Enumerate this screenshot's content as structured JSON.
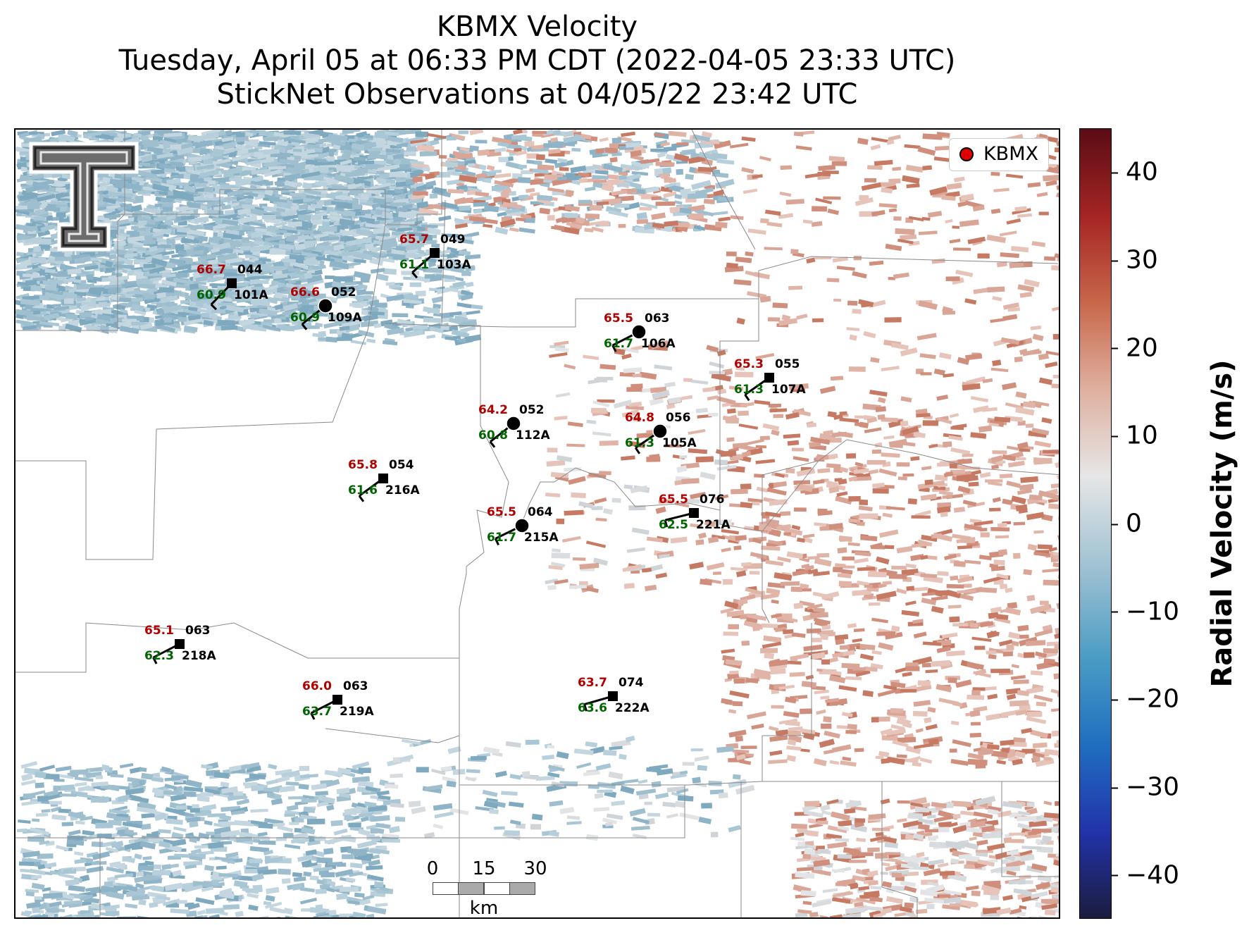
{
  "title": {
    "line1": "KBMX Velocity",
    "line2": "Tuesday, April 05 at 06:33 PM CDT (2022-04-05 23:33 UTC)",
    "line3": "StickNet Observations at 04/05/22 23:42 UTC"
  },
  "legend": {
    "label": "KBMX",
    "marker_color": "#e00000"
  },
  "scalebar": {
    "ticks": [
      "0",
      "15",
      "30"
    ],
    "unit": "km"
  },
  "colorbar": {
    "label": "Radial Velocity (m/s)",
    "ticks": [
      "40",
      "30",
      "20",
      "10",
      "0",
      "−10",
      "−20",
      "−30",
      "−40"
    ],
    "range": [
      -45,
      45
    ],
    "colors": [
      "#1c1c3e",
      "#2233aa",
      "#1f6fc0",
      "#4a9cc4",
      "#9cc0d2",
      "#e6e6e6",
      "#dfb0a0",
      "#c8674a",
      "#a52524",
      "#5a0c14"
    ]
  },
  "stations": [
    {
      "id": "101A",
      "temp": "66.7",
      "dew": "60.9",
      "dir": "044",
      "marker": "square"
    },
    {
      "id": "109A",
      "temp": "66.6",
      "dew": "60.9",
      "dir": "052",
      "marker": "circle"
    },
    {
      "id": "103A",
      "temp": "65.7",
      "dew": "61.1",
      "dir": "049",
      "marker": "square"
    },
    {
      "id": "106A",
      "temp": "65.5",
      "dew": "61.7",
      "dir": "063",
      "marker": "circle"
    },
    {
      "id": "107A",
      "temp": "65.3",
      "dew": "61.3",
      "dir": "055",
      "marker": "square"
    },
    {
      "id": "112A",
      "temp": "64.2",
      "dew": "60.8",
      "dir": "052",
      "marker": "circle"
    },
    {
      "id": "105A",
      "temp": "64.8",
      "dew": "61.3",
      "dir": "056",
      "marker": "circle"
    },
    {
      "id": "216A",
      "temp": "65.8",
      "dew": "61.6",
      "dir": "054",
      "marker": "square"
    },
    {
      "id": "215A",
      "temp": "65.5",
      "dew": "61.7",
      "dir": "064",
      "marker": "circle"
    },
    {
      "id": "221A",
      "temp": "65.5",
      "dew": "62.5",
      "dir": "076",
      "marker": "square"
    },
    {
      "id": "218A",
      "temp": "65.1",
      "dew": "62.3",
      "dir": "063",
      "marker": "square"
    },
    {
      "id": "219A",
      "temp": "66.0",
      "dew": "63.7",
      "dir": "063",
      "marker": "square"
    },
    {
      "id": "222A",
      "temp": "63.7",
      "dew": "63.6",
      "dir": "074",
      "marker": "square"
    }
  ]
}
